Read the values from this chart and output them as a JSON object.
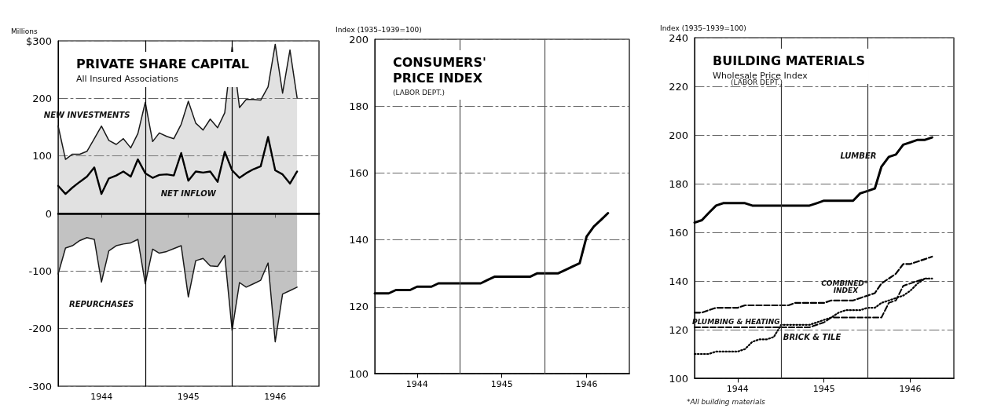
{
  "chart_data": [
    {
      "type": "area",
      "title": "PRIVATE SHARE CAPITAL",
      "subtitle": "All Insured Associations",
      "ylabel": "Millions",
      "xlim": [
        "1944-01",
        "1947-01"
      ],
      "xticks": [
        {
          "value": "1944-07",
          "label": "1944"
        },
        {
          "value": "1945-07",
          "label": "1945"
        },
        {
          "value": "1946-07",
          "label": "1946"
        }
      ],
      "ylim": [
        -300,
        300
      ],
      "yticks": [
        -300,
        -200,
        -100,
        0,
        100,
        200,
        {
          "value": 300,
          "label": "$300"
        }
      ],
      "grid": "y",
      "ref_lines": [
        {
          "axis": "y",
          "value": 0,
          "color": "#000000"
        },
        {
          "axis": "x",
          "value": "1945-01",
          "color": "#000000"
        },
        {
          "axis": "x",
          "value": "1946-01",
          "color": "#000000"
        }
      ],
      "x": [
        "1944-01",
        "1944-02",
        "1944-03",
        "1944-04",
        "1944-05",
        "1944-06",
        "1944-07",
        "1944-08",
        "1944-09",
        "1944-10",
        "1944-11",
        "1944-12",
        "1945-01",
        "1945-02",
        "1945-03",
        "1945-04",
        "1945-05",
        "1945-06",
        "1945-07",
        "1945-08",
        "1945-09",
        "1945-10",
        "1945-11",
        "1945-12",
        "1946-01",
        "1946-02",
        "1946-03",
        "1946-04",
        "1946-05",
        "1946-06",
        "1946-07",
        "1946-08",
        "1946-09",
        "1946-10"
      ],
      "series": [
        {
          "name": "NEW INVESTMENTS",
          "color": "#1a1a1a",
          "values": [
            152,
            94,
            103,
            103,
            108,
            130,
            152,
            127,
            120,
            130,
            114,
            139,
            193,
            125,
            140,
            134,
            130,
            155,
            195,
            157,
            145,
            164,
            149,
            175,
            289,
            184,
            198,
            198,
            197,
            220,
            294,
            209,
            284,
            201
          ]
        },
        {
          "name": "NET INFLOW",
          "type": "line",
          "color": "#000000",
          "values": [
            48,
            34,
            45,
            55,
            64,
            80,
            34,
            61,
            66,
            73,
            64,
            94,
            70,
            62,
            67,
            68,
            66,
            105,
            57,
            73,
            71,
            73,
            55,
            107,
            75,
            62,
            70,
            77,
            82,
            133,
            75,
            68,
            52,
            73
          ]
        },
        {
          "name": "REPURCHASES",
          "color": "#1a1a1a",
          "values": [
            -105,
            -60,
            -56,
            -47,
            -42,
            -45,
            -119,
            -65,
            -56,
            -53,
            -51,
            -45,
            -122,
            -62,
            -69,
            -66,
            -61,
            -56,
            -145,
            -82,
            -78,
            -91,
            -92,
            -73,
            -203,
            -120,
            -128,
            -122,
            -116,
            -86,
            -223,
            -140,
            -134,
            -128
          ]
        }
      ]
    },
    {
      "type": "line",
      "title": "CONSUMERS' PRICE INDEX",
      "subtitle": "(LABOR DEPT.)",
      "ylabel": "Index (1935–1939=100)",
      "xlim": [
        "1944-01",
        "1947-01"
      ],
      "xticks": [
        {
          "value": "1944-07",
          "label": "1944"
        },
        {
          "value": "1945-07",
          "label": "1945"
        },
        {
          "value": "1946-07",
          "label": "1946"
        }
      ],
      "ylim": [
        100,
        200
      ],
      "yticks": [
        100,
        120,
        140,
        160,
        180,
        200
      ],
      "grid": "y",
      "ref_lines": [
        {
          "axis": "x",
          "value": "1945-01",
          "color": "#555555"
        },
        {
          "axis": "x",
          "value": "1946-01",
          "color": "#555555"
        }
      ],
      "x": [
        "1944-01",
        "1944-02",
        "1944-03",
        "1944-04",
        "1944-05",
        "1944-06",
        "1944-07",
        "1944-08",
        "1944-09",
        "1944-10",
        "1944-11",
        "1944-12",
        "1945-01",
        "1945-02",
        "1945-03",
        "1945-04",
        "1945-05",
        "1945-06",
        "1945-07",
        "1945-08",
        "1945-09",
        "1945-10",
        "1945-11",
        "1945-12",
        "1946-01",
        "1946-02",
        "1946-03",
        "1946-04",
        "1946-05",
        "1946-06",
        "1946-07",
        "1946-08",
        "1946-09",
        "1946-10"
      ],
      "series": [
        {
          "color": "#000000",
          "values": [
            124,
            124,
            124,
            125,
            125,
            125,
            126,
            126,
            126,
            127,
            127,
            127,
            127,
            127,
            127,
            127,
            128,
            129,
            129,
            129,
            129,
            129,
            129,
            130,
            130,
            130,
            130,
            131,
            132,
            133,
            141,
            144,
            146,
            148
          ]
        }
      ]
    },
    {
      "type": "line",
      "title": "BUILDING MATERIALS",
      "subtitle": "Wholesale Price Index",
      "ylabel": "Index (1935–1939=100)",
      "annotations": [
        "(LABOR DEPT.)",
        "*All building materials"
      ],
      "xlim": [
        "1944-01",
        "1947-01"
      ],
      "xticks": [
        {
          "value": "1944-07",
          "label": "1944"
        },
        {
          "value": "1945-07",
          "label": "1945"
        },
        {
          "value": "1946-07",
          "label": "1946"
        }
      ],
      "ylim": [
        100,
        240
      ],
      "yticks": [
        100,
        120,
        140,
        160,
        180,
        200,
        220,
        240
      ],
      "grid": "y",
      "ref_lines": [
        {
          "axis": "x",
          "value": "1945-01",
          "color": "#333333"
        },
        {
          "axis": "x",
          "value": "1946-01",
          "color": "#333333"
        }
      ],
      "x": [
        "1944-01",
        "1944-02",
        "1944-03",
        "1944-04",
        "1944-05",
        "1944-06",
        "1944-07",
        "1944-08",
        "1944-09",
        "1944-10",
        "1944-11",
        "1944-12",
        "1945-01",
        "1945-02",
        "1945-03",
        "1945-04",
        "1945-05",
        "1945-06",
        "1945-07",
        "1945-08",
        "1945-09",
        "1945-10",
        "1945-11",
        "1945-12",
        "1946-01",
        "1946-02",
        "1946-03",
        "1946-04",
        "1946-05",
        "1946-06",
        "1946-07",
        "1946-08",
        "1946-09",
        "1946-10"
      ],
      "series": [
        {
          "name": "LUMBER",
          "color": "#000000",
          "line_style": "solid",
          "values": [
            164,
            165,
            168,
            171,
            172,
            172,
            172,
            172,
            171,
            171,
            171,
            171,
            171,
            171,
            171,
            171,
            171,
            172,
            173,
            173,
            173,
            173,
            173,
            176,
            177,
            178,
            187,
            191,
            192,
            196,
            197,
            198,
            198,
            199
          ]
        },
        {
          "name": "COMBINED* INDEX",
          "color": "#000000",
          "line_style": "dashed",
          "values": [
            127,
            127,
            128,
            129,
            129,
            129,
            129,
            130,
            130,
            130,
            130,
            130,
            130,
            130,
            131,
            131,
            131,
            131,
            131,
            132,
            132,
            132,
            132,
            133,
            134,
            135,
            139,
            141,
            143,
            147,
            147,
            148,
            149,
            150
          ]
        },
        {
          "name": "PLUMBING & HEATING",
          "color": "#000000",
          "line_style": "dashed",
          "values": [
            121,
            121,
            121,
            121,
            121,
            121,
            121,
            121,
            121,
            121,
            121,
            121,
            121,
            121,
            121,
            121,
            121,
            122,
            123,
            125,
            125,
            125,
            125,
            125,
            125,
            125,
            125,
            131,
            132,
            138,
            139,
            140,
            141,
            141
          ]
        },
        {
          "name": "BRICK & TILE",
          "color": "#000000",
          "line_style": "dotted",
          "values": [
            110,
            110,
            110,
            111,
            111,
            111,
            111,
            112,
            115,
            116,
            116,
            117,
            122,
            122,
            122,
            122,
            122,
            123,
            124,
            125,
            127,
            128,
            128,
            128,
            129,
            129,
            131,
            132,
            133,
            134,
            136,
            139,
            141,
            141
          ]
        }
      ]
    }
  ]
}
